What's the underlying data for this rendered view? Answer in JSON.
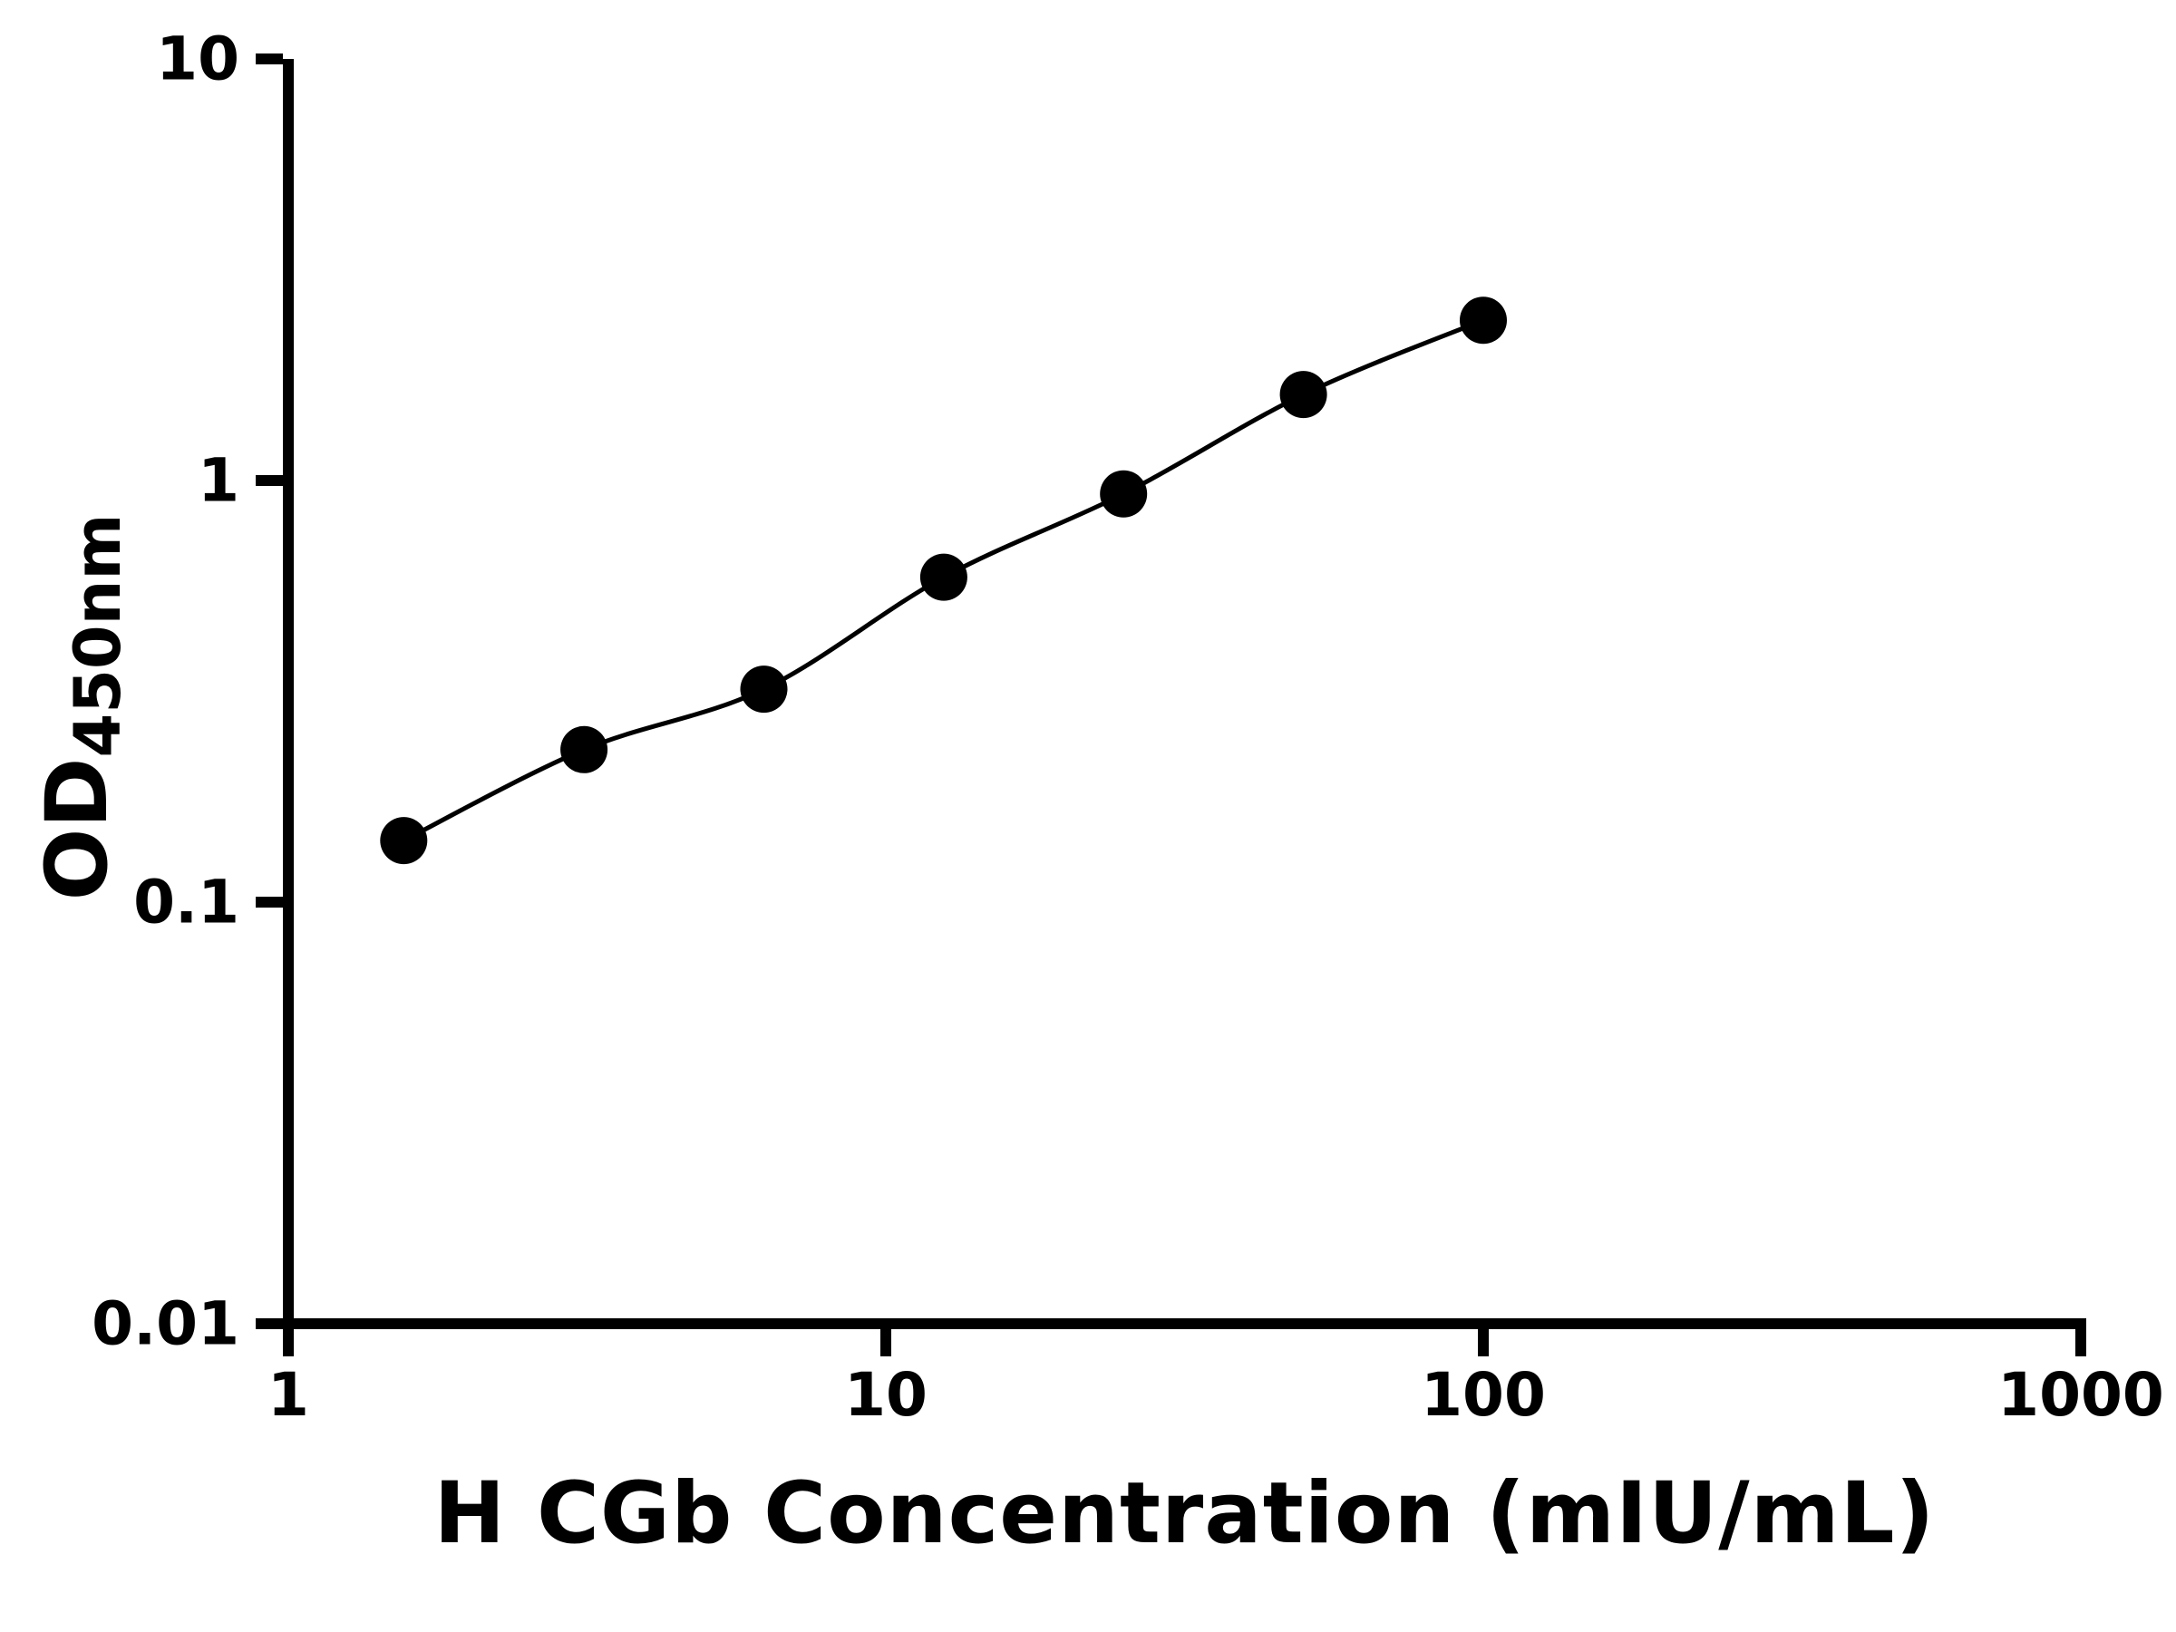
{
  "figure": {
    "background_color": "#ffffff",
    "foreground_color": "#000000"
  },
  "chart_data": {
    "type": "line",
    "markers": true,
    "marker_shape": "filled-circle",
    "marker_color": "#000000",
    "line_color": "#000000",
    "title": "",
    "xlabel": "H CGb Concentration (mIU/mL)",
    "ylabel": "OD",
    "ylabel_sub": "450nm",
    "x_scale": "log10",
    "y_scale": "log10",
    "xlim": [
      1,
      1000
    ],
    "ylim": [
      0.01,
      10
    ],
    "x_ticks": [
      1,
      10,
      100,
      1000
    ],
    "x_tick_labels": [
      "1",
      "10",
      "100",
      "1000"
    ],
    "y_ticks": [
      0.01,
      0.1,
      1,
      10
    ],
    "y_tick_labels": [
      "0.01",
      "0.1",
      "1",
      "10"
    ],
    "grid": false,
    "legend": "none",
    "x": [
      1.56,
      3.125,
      6.25,
      12.5,
      25,
      50,
      100
    ],
    "y": [
      0.14,
      0.23,
      0.32,
      0.59,
      0.93,
      1.6,
      2.4
    ]
  }
}
